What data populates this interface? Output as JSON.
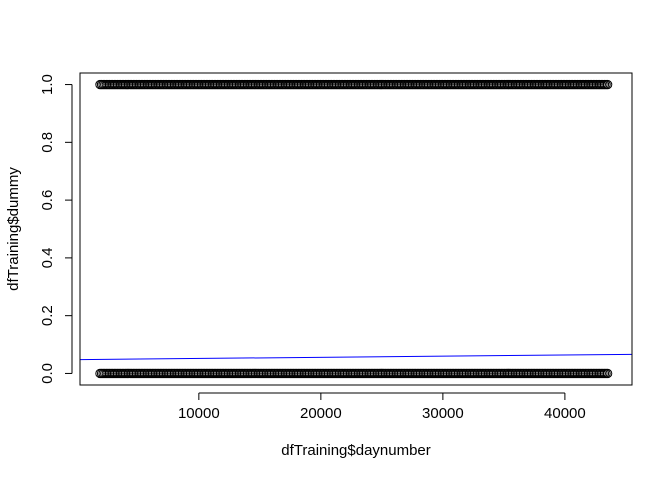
{
  "chart_data": {
    "type": "scatter",
    "xlabel": "dfTraining$daynumber",
    "ylabel": "dfTraining$dummy",
    "xlim": [
      260,
      45500
    ],
    "ylim": [
      -0.04,
      1.04
    ],
    "x_ticks": [
      10000,
      20000,
      30000,
      40000
    ],
    "x_tick_labels": [
      "10000",
      "20000",
      "30000",
      "40000"
    ],
    "y_ticks": [
      0.0,
      0.2,
      0.4,
      0.6,
      0.8,
      1.0
    ],
    "y_tick_labels": [
      "0.0",
      "0.2",
      "0.4",
      "0.6",
      "0.8",
      "1.0"
    ],
    "grid": false,
    "series": [
      {
        "marker": "open-circle",
        "color": "#000000",
        "points_x_range": [
          1900,
          43600
        ],
        "y_levels": [
          0,
          1
        ]
      }
    ],
    "fit_line": {
      "color": "#0000ff",
      "x": [
        260,
        45500
      ],
      "y": [
        0.048,
        0.066
      ]
    }
  }
}
